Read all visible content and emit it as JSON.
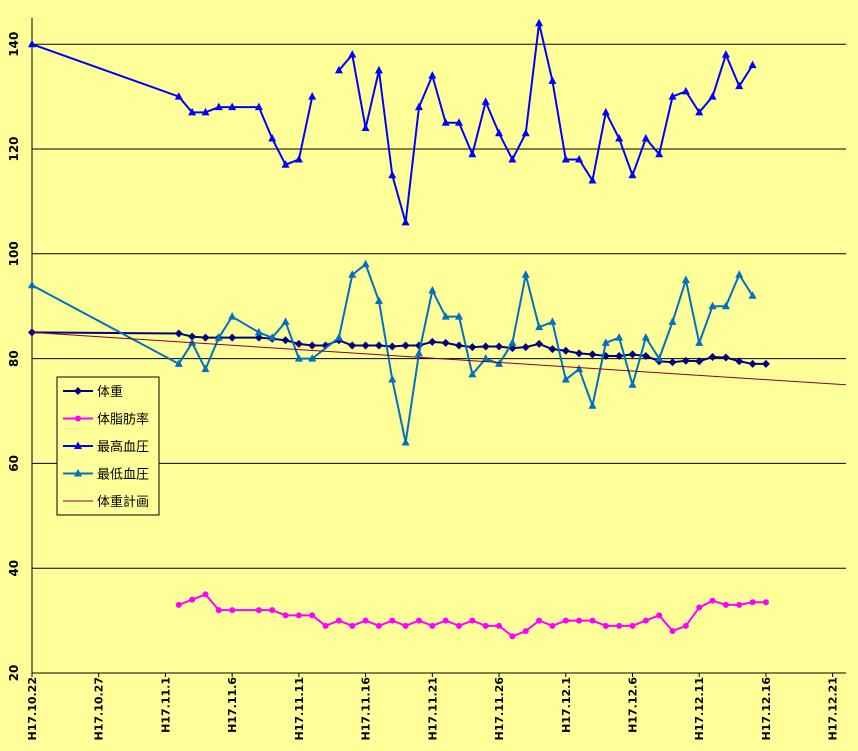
{
  "chart_data": {
    "type": "line",
    "grid": "horizontal",
    "legend_placement": "left",
    "ylim": [
      20,
      145
    ],
    "ytick_labels": [
      "20",
      "40",
      "60",
      "80",
      "100",
      "120",
      "140"
    ],
    "xtick_labels": [
      "H17.10.22",
      "H17.10.27",
      "H17.11.1",
      "H17.11.6",
      "H17.11.11",
      "H17.11.16",
      "H17.11.21",
      "H17.11.26",
      "H17.12.1",
      "H17.12.6",
      "H17.12.11",
      "H17.12.16",
      "H17.12.21"
    ],
    "x_start_day": 0,
    "x_end_day": 61,
    "series": [
      {
        "name": "体重",
        "color": "#000080",
        "marker": "diamond",
        "x": [
          0,
          11,
          12,
          13,
          14,
          15,
          17,
          18,
          19,
          20,
          21,
          22,
          23,
          24,
          25,
          26,
          27,
          28,
          29,
          30,
          31,
          32,
          33,
          34,
          35,
          36,
          37,
          38,
          39,
          40,
          41,
          42,
          43,
          44,
          45,
          46,
          47,
          48,
          49,
          50,
          51,
          52,
          53,
          54,
          55
        ],
        "values": [
          85.0,
          84.8,
          84.2,
          84.0,
          84.0,
          84.0,
          84.0,
          83.8,
          83.5,
          82.8,
          82.5,
          82.5,
          83.5,
          82.5,
          82.5,
          82.5,
          82.3,
          82.5,
          82.5,
          83.2,
          83.0,
          82.5,
          82.2,
          82.3,
          82.3,
          82.0,
          82.2,
          82.8,
          81.8,
          81.5,
          81.0,
          80.8,
          80.5,
          80.5,
          80.8,
          80.5,
          79.5,
          79.3,
          79.6,
          79.5,
          80.3,
          80.2,
          79.5,
          79.0,
          79.0
        ]
      },
      {
        "name": "体脂肪率",
        "color": "#FF00FF",
        "marker": "circle",
        "x": [
          11,
          12,
          13,
          14,
          15,
          17,
          18,
          19,
          20,
          21,
          22,
          23,
          24,
          25,
          26,
          27,
          28,
          29,
          30,
          31,
          32,
          33,
          34,
          35,
          36,
          37,
          38,
          39,
          40,
          41,
          42,
          43,
          44,
          45,
          46,
          47,
          48,
          49,
          50,
          51,
          52,
          53,
          54,
          55
        ],
        "values": [
          33.0,
          34.0,
          35.0,
          32.0,
          32.0,
          32.0,
          32.0,
          31.0,
          31.0,
          31.0,
          29.0,
          30.0,
          29.0,
          30.0,
          29.0,
          30.0,
          29.0,
          30.0,
          29.0,
          30.0,
          29.0,
          30.0,
          29.0,
          29.0,
          27.0,
          28.0,
          30.0,
          29.0,
          30.0,
          30.0,
          30.0,
          29.0,
          29.0,
          29.0,
          30.0,
          31.0,
          28.0,
          29.0,
          32.5,
          33.8,
          33.0,
          33.0,
          33.5,
          33.5
        ]
      },
      {
        "name": "最高血圧",
        "color": "#0000FF",
        "marker": "triangle",
        "x": [
          0,
          11,
          12,
          13,
          14,
          15,
          17,
          18,
          19,
          20,
          21,
          null,
          23,
          24,
          25,
          26,
          27,
          28,
          29,
          30,
          31,
          32,
          33,
          34,
          35,
          36,
          37,
          38,
          39,
          40,
          41,
          42,
          43,
          44,
          45,
          46,
          47,
          48,
          49,
          50,
          51,
          52,
          53,
          54
        ],
        "values": [
          140,
          130,
          127,
          127,
          128,
          128,
          128,
          122,
          117,
          118,
          130,
          null,
          135,
          138,
          124,
          135,
          115,
          106,
          128,
          134,
          125,
          125,
          119,
          129,
          123,
          118,
          123,
          144,
          133,
          118,
          118,
          114,
          127,
          122,
          115,
          122,
          119,
          130,
          131,
          127,
          130,
          138,
          132,
          136
        ]
      },
      {
        "name": "最低血圧",
        "color": "#0070C0",
        "marker": "triangle",
        "x": [
          0,
          11,
          12,
          13,
          14,
          15,
          17,
          18,
          19,
          20,
          21,
          23,
          24,
          25,
          26,
          27,
          28,
          29,
          30,
          31,
          32,
          33,
          34,
          35,
          36,
          37,
          38,
          39,
          40,
          41,
          42,
          43,
          44,
          45,
          46,
          47,
          48,
          49,
          50,
          51,
          52,
          53,
          54
        ],
        "values": [
          94,
          79,
          83,
          78,
          84,
          88,
          85,
          84,
          87,
          80,
          80,
          84,
          96,
          98,
          91,
          76,
          64,
          81,
          93,
          88,
          88,
          77,
          80,
          79,
          83,
          96,
          86,
          87,
          76,
          78,
          71,
          83,
          84,
          75,
          84,
          80,
          87,
          95,
          83,
          90,
          90,
          96,
          92
        ]
      },
      {
        "name": "体重計画",
        "color": "#800040",
        "marker": "none",
        "x": [
          0,
          61
        ],
        "values": [
          85.0,
          75.0
        ]
      }
    ]
  },
  "legend": {
    "items": [
      {
        "label": "体重",
        "color": "#000080",
        "marker": "diamond"
      },
      {
        "label": "体脂肪率",
        "color": "#FF00FF",
        "marker": "circle"
      },
      {
        "label": "最高血圧",
        "color": "#0000FF",
        "marker": "triangle"
      },
      {
        "label": "最低血圧",
        "color": "#0070C0",
        "marker": "triangle"
      },
      {
        "label": "体重計画",
        "color": "#800040",
        "marker": "none"
      }
    ]
  }
}
